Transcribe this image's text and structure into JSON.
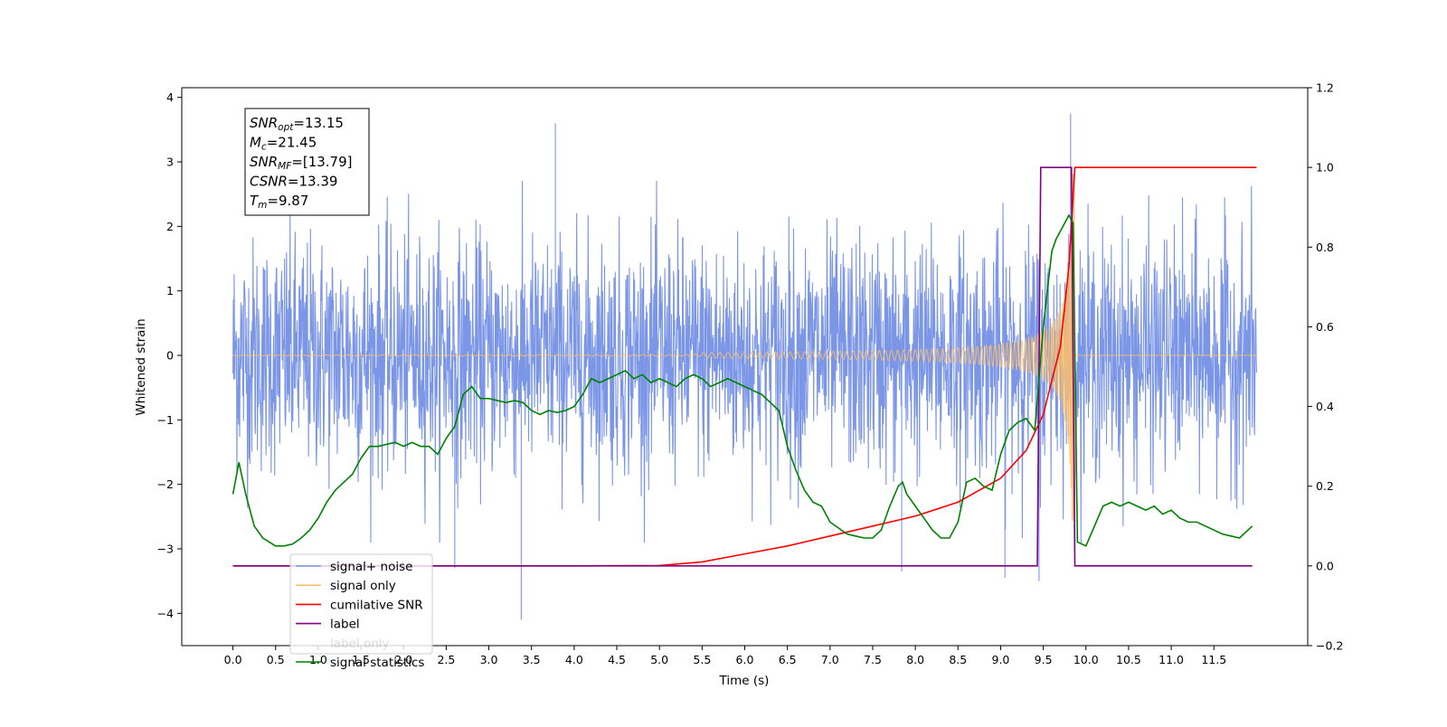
{
  "chart_data": {
    "type": "line",
    "xlabel": "Time (s)",
    "ylabel": "Whitened strain",
    "xlim": [
      -0.6,
      12.6
    ],
    "ylim": [
      -4.5,
      4.15
    ],
    "y2lim": [
      -0.2,
      1.2
    ],
    "x_ticks": [
      "0.0",
      "0.5",
      "1.0",
      "1.5",
      "2.0",
      "2.5",
      "3.0",
      "3.5",
      "4.0",
      "4.5",
      "5.0",
      "5.5",
      "6.0",
      "6.5",
      "7.0",
      "7.5",
      "8.0",
      "8.5",
      "9.0",
      "9.5",
      "10.0",
      "10.5",
      "11.0",
      "11.5"
    ],
    "x_tick_values": [
      0,
      0.5,
      1,
      1.5,
      2,
      2.5,
      3,
      3.5,
      4,
      4.5,
      5,
      5.5,
      6,
      6.5,
      7,
      7.5,
      8,
      8.5,
      9,
      9.5,
      10,
      10.5,
      11,
      11.5
    ],
    "y_ticks": [
      "−4",
      "−3",
      "−2",
      "−1",
      "0",
      "1",
      "2",
      "3",
      "4"
    ],
    "y_tick_values": [
      -4,
      -3,
      -2,
      -1,
      0,
      1,
      2,
      3,
      4
    ],
    "y2_ticks": [
      "−0.2",
      "0.0",
      "0.2",
      "0.4",
      "0.6",
      "0.8",
      "1.0",
      "1.2"
    ],
    "y2_tick_values": [
      -0.2,
      0,
      0.2,
      0.4,
      0.6,
      0.8,
      1.0,
      1.2
    ],
    "grid": false,
    "legend_position": "lower-left",
    "annotation": {
      "lines": [
        {
          "main": "SNR",
          "sub": "opt",
          "value": "=13.15"
        },
        {
          "main": "M",
          "sub": "c",
          "value": "=21.45"
        },
        {
          "main": "SNR",
          "sub": "MF",
          "value": "=[13.79]"
        },
        {
          "main": "CSNR",
          "sub": "",
          "value": "=13.39"
        },
        {
          "main": "T",
          "sub": "m",
          "value": "=9.87"
        }
      ]
    },
    "series": [
      {
        "name": "signal+ noise",
        "axis": "left",
        "color": "#7b96e6",
        "noise_band": {
          "x_start": 0.0,
          "x_end": 12.0,
          "typical_peak": 2.2,
          "max": 3.75,
          "min": -4.1
        },
        "spikes": [
          [
            3.38,
            -4.1
          ],
          [
            3.78,
            3.6
          ],
          [
            9.82,
            3.75
          ],
          [
            9.45,
            -3.5
          ],
          [
            2.6,
            -3.3
          ],
          [
            7.84,
            -3.35
          ],
          [
            9.05,
            -3.45
          ]
        ]
      },
      {
        "name": "signal only",
        "axis": "left",
        "color": "#ffbf66",
        "chirp": {
          "x_start": 0.0,
          "x_end": 12.0,
          "merge_time": 9.87,
          "peak_amplitude": 2.9
        }
      },
      {
        "name": "cumilative SNR",
        "axis": "right",
        "color": "#ff0000",
        "x": [
          0.0,
          4.0,
          5.0,
          5.5,
          6.0,
          6.5,
          7.0,
          7.5,
          8.0,
          8.5,
          9.0,
          9.3,
          9.5,
          9.7,
          9.8,
          9.87,
          12.0
        ],
        "values": [
          0.0,
          0.0,
          0.001,
          0.01,
          0.03,
          0.05,
          0.075,
          0.1,
          0.125,
          0.16,
          0.22,
          0.29,
          0.38,
          0.55,
          0.75,
          1.0,
          1.0
        ]
      },
      {
        "name": "label",
        "axis": "right",
        "color": "#800080",
        "x": [
          0.0,
          9.43,
          9.47,
          9.83,
          9.87,
          11.95
        ],
        "values": [
          0.0,
          0.0,
          1.0,
          1.0,
          0.0,
          0.0
        ]
      },
      {
        "name": "label only",
        "axis": "right",
        "color": "#800080",
        "hidden": true
      },
      {
        "name": "signal statistics",
        "axis": "right",
        "color": "#008000",
        "x": [
          0.0,
          0.07,
          0.15,
          0.25,
          0.35,
          0.5,
          0.6,
          0.7,
          0.8,
          0.9,
          1.0,
          1.1,
          1.2,
          1.3,
          1.4,
          1.5,
          1.6,
          1.7,
          1.8,
          1.9,
          2.0,
          2.1,
          2.2,
          2.3,
          2.4,
          2.5,
          2.6,
          2.7,
          2.8,
          2.9,
          3.0,
          3.1,
          3.2,
          3.3,
          3.4,
          3.5,
          3.6,
          3.7,
          3.8,
          3.9,
          4.0,
          4.1,
          4.2,
          4.3,
          4.4,
          4.5,
          4.6,
          4.7,
          4.8,
          4.9,
          5.0,
          5.1,
          5.2,
          5.3,
          5.4,
          5.5,
          5.6,
          5.7,
          5.8,
          5.9,
          6.0,
          6.1,
          6.2,
          6.3,
          6.4,
          6.5,
          6.6,
          6.7,
          6.8,
          6.9,
          7.0,
          7.1,
          7.2,
          7.3,
          7.4,
          7.5,
          7.6,
          7.7,
          7.8,
          7.85,
          7.9,
          8.0,
          8.1,
          8.2,
          8.3,
          8.4,
          8.5,
          8.6,
          8.7,
          8.8,
          8.9,
          9.0,
          9.1,
          9.2,
          9.3,
          9.4,
          9.5,
          9.6,
          9.65,
          9.7,
          9.75,
          9.8,
          9.85,
          9.9,
          10.0,
          10.1,
          10.2,
          10.3,
          10.4,
          10.5,
          10.6,
          10.7,
          10.8,
          10.9,
          11.0,
          11.1,
          11.2,
          11.3,
          11.4,
          11.5,
          11.6,
          11.7,
          11.8,
          11.95
        ],
        "values": [
          0.18,
          0.26,
          0.18,
          0.1,
          0.07,
          0.05,
          0.05,
          0.055,
          0.07,
          0.09,
          0.12,
          0.16,
          0.19,
          0.21,
          0.23,
          0.27,
          0.3,
          0.3,
          0.305,
          0.31,
          0.3,
          0.31,
          0.3,
          0.3,
          0.28,
          0.32,
          0.35,
          0.43,
          0.45,
          0.42,
          0.42,
          0.415,
          0.41,
          0.415,
          0.41,
          0.39,
          0.38,
          0.39,
          0.385,
          0.39,
          0.4,
          0.43,
          0.47,
          0.46,
          0.47,
          0.48,
          0.49,
          0.47,
          0.48,
          0.46,
          0.47,
          0.46,
          0.45,
          0.47,
          0.48,
          0.47,
          0.45,
          0.46,
          0.47,
          0.46,
          0.45,
          0.44,
          0.43,
          0.41,
          0.39,
          0.3,
          0.24,
          0.19,
          0.16,
          0.15,
          0.11,
          0.095,
          0.08,
          0.075,
          0.07,
          0.07,
          0.09,
          0.15,
          0.2,
          0.21,
          0.18,
          0.15,
          0.12,
          0.09,
          0.07,
          0.07,
          0.11,
          0.21,
          0.22,
          0.2,
          0.19,
          0.28,
          0.34,
          0.36,
          0.37,
          0.34,
          0.6,
          0.79,
          0.82,
          0.84,
          0.86,
          0.88,
          0.86,
          0.06,
          0.05,
          0.1,
          0.15,
          0.16,
          0.15,
          0.16,
          0.15,
          0.14,
          0.15,
          0.13,
          0.14,
          0.12,
          0.11,
          0.11,
          0.1,
          0.09,
          0.08,
          0.075,
          0.07,
          0.1
        ]
      }
    ]
  }
}
